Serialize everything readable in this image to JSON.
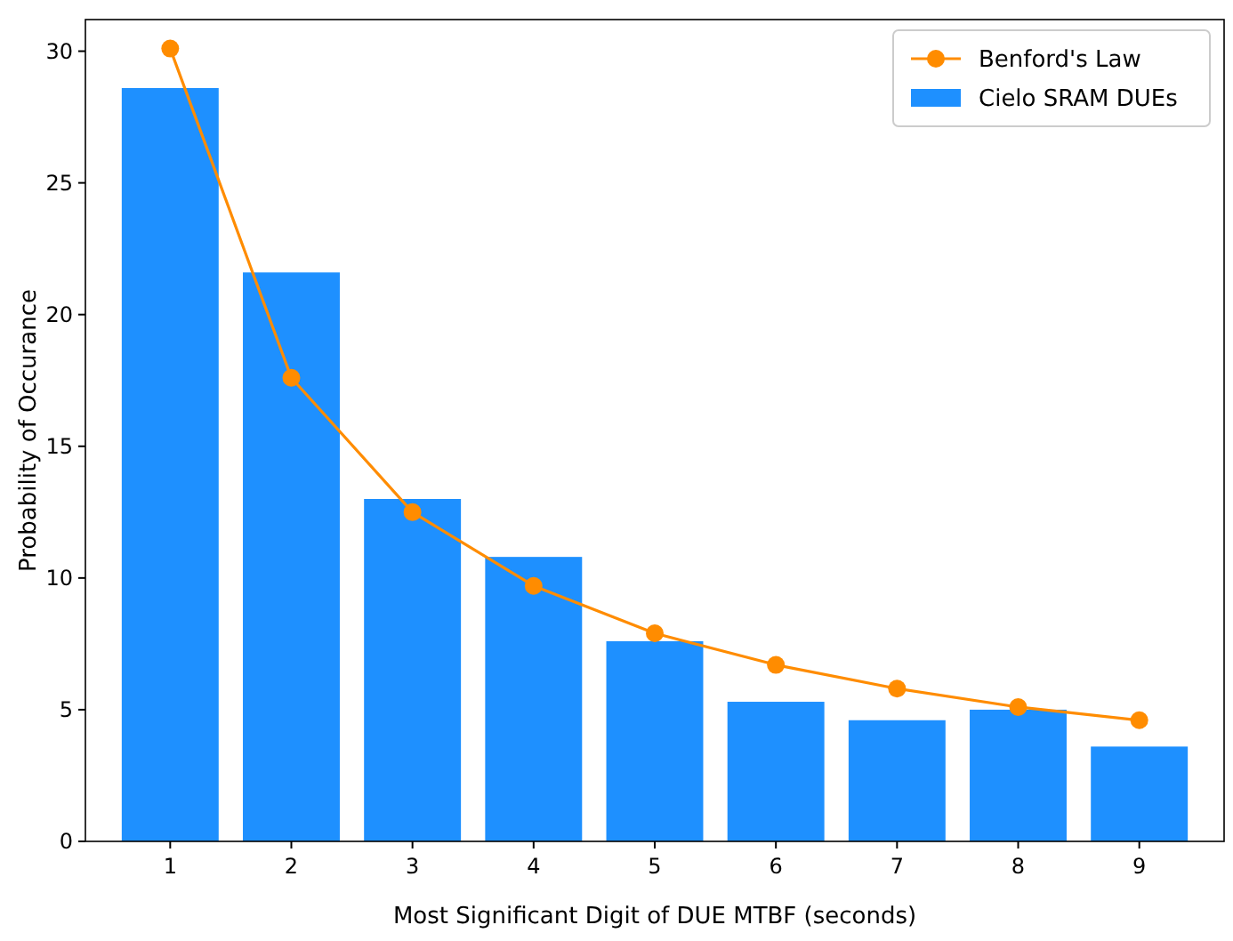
{
  "chart_data": {
    "type": "bar",
    "xlabel": "Most Significant Digit of DUE MTBF (seconds)",
    "ylabel": "Probability of Occurance",
    "categories": [
      "1",
      "2",
      "3",
      "4",
      "5",
      "6",
      "7",
      "8",
      "9"
    ],
    "series": [
      {
        "name": "Benford's Law",
        "type": "line",
        "color": "#ff8c00",
        "values": [
          30.1,
          17.6,
          12.5,
          9.7,
          7.9,
          6.7,
          5.8,
          5.1,
          4.6
        ]
      },
      {
        "name": "Cielo SRAM DUEs",
        "color": "#1e90ff",
        "values": [
          28.6,
          21.6,
          13.0,
          10.8,
          7.6,
          5.3,
          4.6,
          5.0,
          3.6
        ]
      }
    ],
    "ylim": [
      0,
      31.2
    ],
    "yticks": [
      0,
      5,
      10,
      15,
      20,
      25,
      30
    ],
    "legend": "top right",
    "marker": "circle",
    "grid": false
  }
}
